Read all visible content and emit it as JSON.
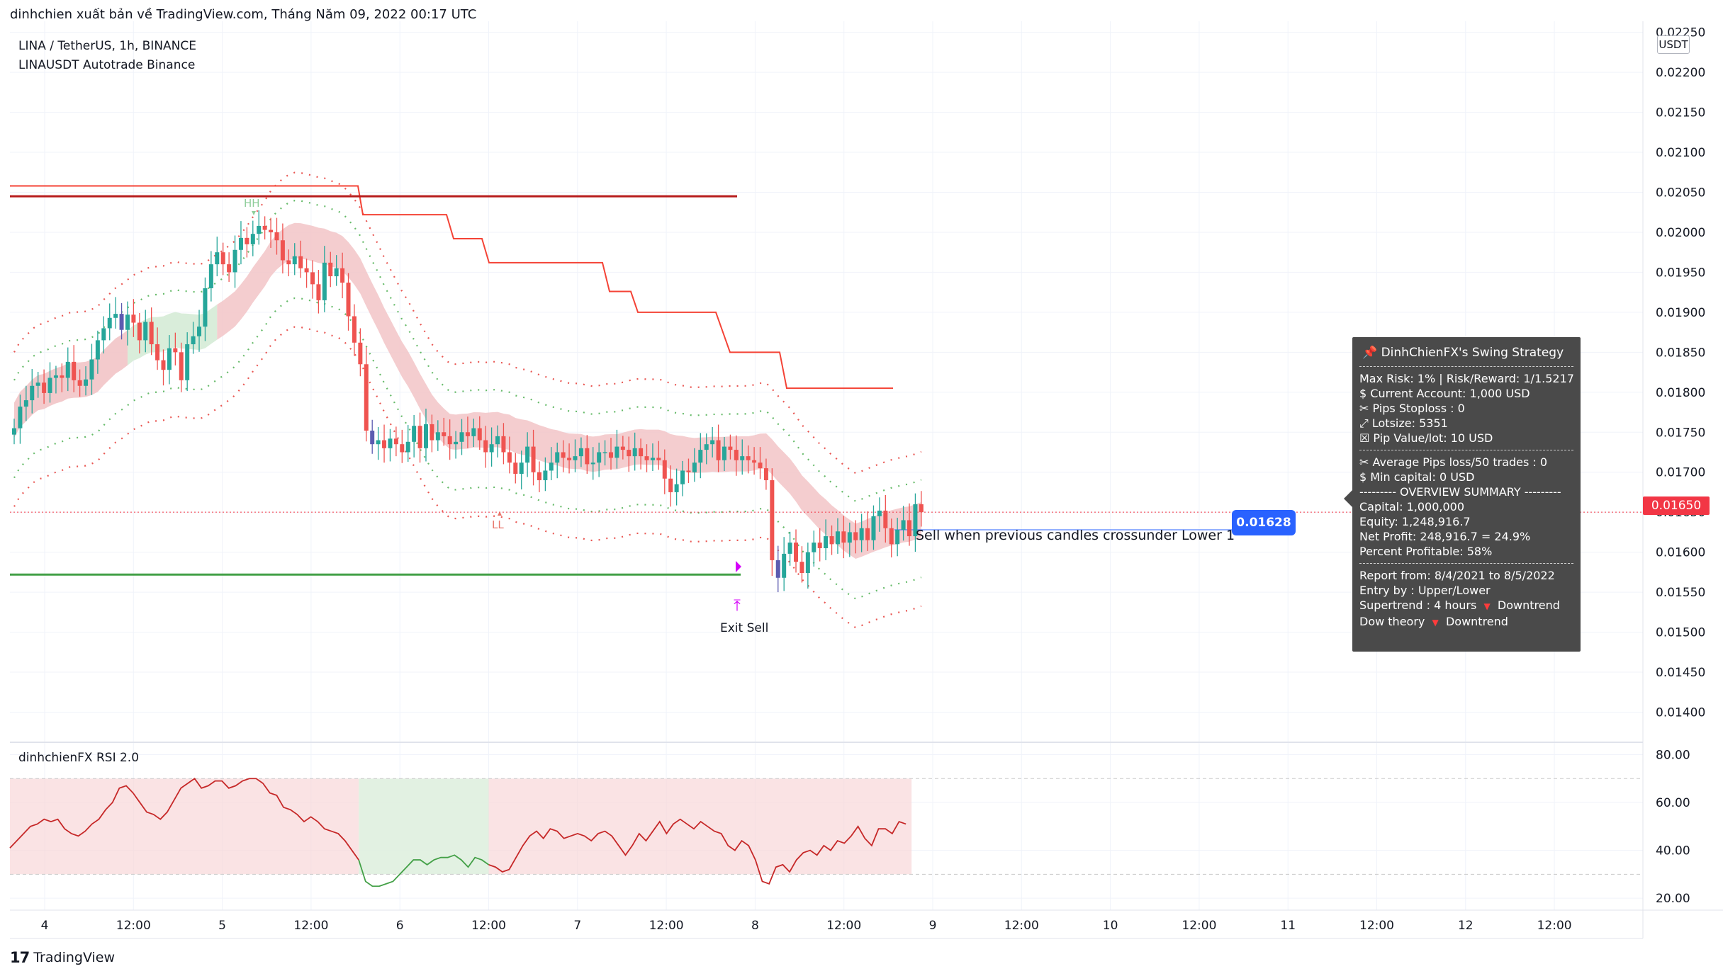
{
  "header": {
    "text": "dinhchien xuất bản về TradingView.com, Tháng Năm 09, 2022 00:17 UTC"
  },
  "legend": {
    "line1": "LINA / TetherUS, 1h, BINANCE",
    "line2": "LINAUSDT Autotrade Binance"
  },
  "rsi_legend": "dinhchienFX RSI 2.0",
  "footer": {
    "logo_mark": "17",
    "brand": "TradingView"
  },
  "currency_badge": "USDT",
  "last_price_tag": "0.01650",
  "level_tag": "0.01628",
  "annotations": {
    "sell_note": "Sell when previous candles crossunder Lower 1",
    "exit_note": "Exit Sell",
    "hh": "HH",
    "ll": "LL"
  },
  "colors": {
    "up": "#26a69a",
    "down": "#ef5350",
    "cloud_red": "#f2c4c7",
    "cloud_green": "#d7ecd8",
    "resistance": "#b71c1c",
    "support": "#43a047",
    "trail": "#f44336"
  },
  "panel": {
    "title": "DinhChienFX's Swing Strategy",
    "lines1": [
      "Max Risk: 1% | Risk/Reward: 1/1.5217",
      "$ Current Account: 1,000 USD",
      "✂ Pips Stoploss : 0",
      "⤢ Lotsize: 5351",
      "☒ Pip Value/lot: 10 USD"
    ],
    "lines2": [
      "✂ Average Pips loss/50 trades : 0",
      "$ Min capital: 0 USD",
      "--------- OVERVIEW SUMMARY ---------",
      "Capital: 1,000,000",
      "Equity: 1,248,916.7",
      "Net Profit: 248,916.7 = 24.9%",
      "Percent Profitable: 58%"
    ],
    "lines3": [
      "Report from: 8/4/2021 to 8/5/2022",
      "Entry by : Upper/Lower"
    ],
    "supertrend_label": "Supertrend : 4 hours",
    "supertrend_value": "Downtrend",
    "dow_label": "Dow theory",
    "dow_value": "Downtrend"
  },
  "chart_data": [
    {
      "type": "candlestick",
      "title": "LINA / TetherUS, 1h, BINANCE",
      "ylim": [
        0.01365,
        0.02255
      ],
      "y_ticks": [
        "0.02250",
        "0.02200",
        "0.02150",
        "0.02100",
        "0.02050",
        "0.02000",
        "0.01950",
        "0.01900",
        "0.01850",
        "0.01800",
        "0.01750",
        "0.01700",
        "0.01650",
        "0.01600",
        "0.01550",
        "0.01500",
        "0.01450",
        "0.01400"
      ],
      "x_ticks": [
        "4",
        "12:00",
        "5",
        "12:00",
        "6",
        "12:00",
        "7",
        "12:00",
        "8",
        "12:00",
        "9",
        "12:00",
        "10",
        "12:00",
        "11",
        "12:00",
        "12",
        "12:00"
      ],
      "close": [
        0.01755,
        0.01782,
        0.0179,
        0.01808,
        0.01812,
        0.01799,
        0.01818,
        0.01821,
        0.01818,
        0.01838,
        0.01815,
        0.01808,
        0.01816,
        0.01841,
        0.01865,
        0.0188,
        0.01893,
        0.01898,
        0.01878,
        0.01897,
        0.01887,
        0.01865,
        0.01888,
        0.0186,
        0.0184,
        0.01828,
        0.01855,
        0.0185,
        0.01815,
        0.0186,
        0.0187,
        0.01882,
        0.0193,
        0.0196,
        0.01975,
        0.0196,
        0.0195,
        0.01978,
        0.01993,
        0.01985,
        0.01998,
        0.02008,
        0.02003,
        0.02,
        0.0199,
        0.01965,
        0.0196,
        0.0197,
        0.01955,
        0.0195,
        0.01935,
        0.01915,
        0.01962,
        0.01945,
        0.01955,
        0.01937,
        0.01895,
        0.01862,
        0.01835,
        0.01752,
        0.01735,
        0.0174,
        0.0173,
        0.01742,
        0.01735,
        0.01725,
        0.01738,
        0.01758,
        0.0173,
        0.0176,
        0.0174,
        0.0175,
        0.01745,
        0.01735,
        0.01738,
        0.0175,
        0.01745,
        0.01755,
        0.0174,
        0.01725,
        0.01735,
        0.01745,
        0.01725,
        0.01712,
        0.01698,
        0.01712,
        0.01732,
        0.017,
        0.0169,
        0.01702,
        0.01712,
        0.01725,
        0.01718,
        0.01715,
        0.0172,
        0.0173,
        0.0171,
        0.01712,
        0.01725,
        0.01725,
        0.01718,
        0.01732,
        0.01728,
        0.0172,
        0.0173,
        0.0172,
        0.01715,
        0.01718,
        0.01715,
        0.01692,
        0.01675,
        0.01685,
        0.01702,
        0.017,
        0.01712,
        0.01728,
        0.01735,
        0.0174,
        0.01715,
        0.01732,
        0.01728,
        0.01715,
        0.0172,
        0.01715,
        0.01712,
        0.01705,
        0.0169,
        0.0159,
        0.01568,
        0.01598,
        0.01612,
        0.01588,
        0.01574,
        0.016,
        0.01612,
        0.01605,
        0.0162,
        0.0161,
        0.01626,
        0.01612,
        0.01625,
        0.01615,
        0.0163,
        0.01615,
        0.01645,
        0.01652,
        0.0163,
        0.0161,
        0.01628,
        0.0164,
        0.0162,
        0.0166,
        0.0165
      ],
      "supports": [
        {
          "name": "resistance",
          "value": 0.02045
        },
        {
          "name": "support",
          "value": 0.01572
        }
      ],
      "current_price": 0.0165,
      "level_marker": 0.01628
    },
    {
      "type": "line",
      "title": "dinhchienFX RSI 2.0",
      "ylim": [
        15,
        84
      ],
      "y_ticks": [
        "80.00",
        "60.00",
        "40.00",
        "20.00"
      ],
      "bands": [
        30,
        70
      ],
      "values": [
        41,
        44,
        47,
        50,
        51,
        53,
        52,
        53,
        49,
        47,
        46,
        48,
        51,
        53,
        57,
        60,
        66,
        67,
        64,
        60,
        56,
        55,
        53,
        56,
        61,
        66,
        68,
        70,
        66,
        67,
        69,
        69,
        66,
        67,
        69,
        70,
        70,
        68,
        64,
        63,
        58,
        57,
        55,
        52,
        54,
        52,
        49,
        48,
        47,
        44,
        40,
        36,
        27,
        25,
        25,
        26,
        27,
        30,
        33,
        36,
        36,
        34,
        36,
        37,
        37,
        38,
        36,
        33,
        37,
        36,
        34,
        33,
        31,
        32,
        37,
        42,
        46,
        48,
        45,
        49,
        48,
        45,
        46,
        47,
        46,
        44,
        47,
        48,
        46,
        42,
        38,
        42,
        47,
        44,
        48,
        52,
        47,
        51,
        53,
        51,
        49,
        52,
        50,
        48,
        47,
        42,
        40,
        44,
        42,
        36,
        27,
        26,
        33,
        34,
        31,
        36,
        39,
        40,
        38,
        42,
        40,
        44,
        43,
        46,
        50,
        45,
        42,
        49,
        49,
        47,
        52,
        51
      ],
      "segments": [
        {
          "from": 0,
          "to": 50,
          "color": "red"
        },
        {
          "from": 51,
          "to": 69,
          "color": "green"
        },
        {
          "from": 70,
          "to": 200,
          "color": "red"
        }
      ]
    }
  ]
}
